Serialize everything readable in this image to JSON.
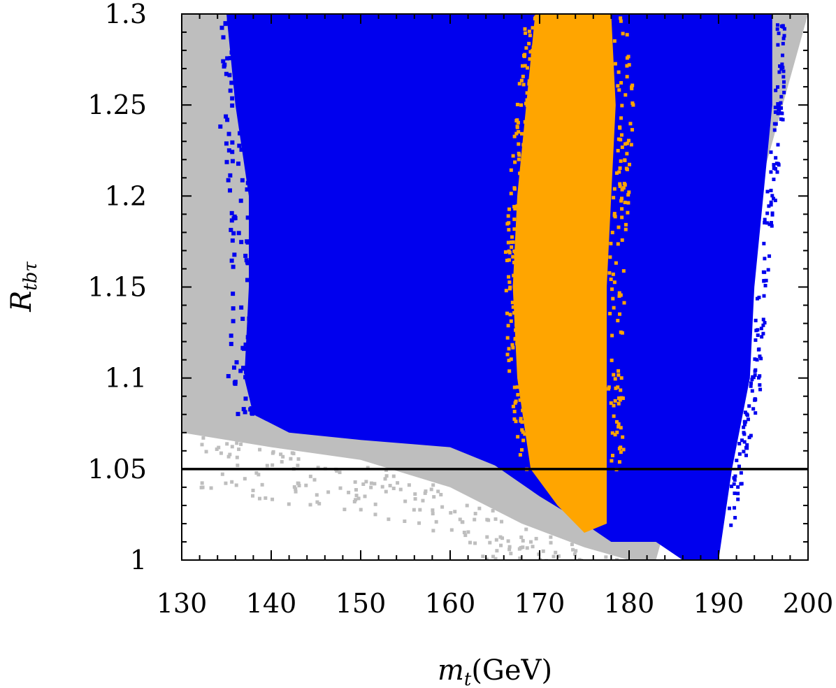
{
  "chart_data": {
    "type": "scatter",
    "title": "",
    "xlabel": {
      "symbol": "m",
      "sub": "t",
      "unit": "(GeV)"
    },
    "ylabel": {
      "symbol": "R",
      "sub": "tbτ"
    },
    "xlim": [
      130,
      200
    ],
    "ylim": [
      1.0,
      1.3
    ],
    "x_ticks": [
      130,
      140,
      150,
      160,
      170,
      180,
      190,
      200
    ],
    "x_tick_labels": [
      "130",
      "140",
      "150",
      "160",
      "170",
      "180",
      "190",
      "200"
    ],
    "y_ticks": [
      1.0,
      1.05,
      1.1,
      1.15,
      1.2,
      1.25,
      1.3
    ],
    "y_tick_labels": [
      "1",
      "1.05",
      "1.1",
      "1.15",
      "1.2",
      "1.25",
      "1.3"
    ],
    "reference_line": {
      "orientation": "horizontal",
      "y": 1.05,
      "color": "#000000"
    },
    "grid": false,
    "legend": "none",
    "series": [
      {
        "color": "#bebebe",
        "region": {
          "upper": [
            [
              130,
              1.3
            ],
            [
              200,
              1.3
            ]
          ],
          "lower": [
            [
              130,
              1.07
            ],
            [
              140,
              1.062
            ],
            [
              150,
              1.055
            ],
            [
              160,
              1.04
            ],
            [
              168,
              1.02
            ],
            [
              175,
              1.007
            ],
            [
              180,
              1.0
            ],
            [
              183,
              1.0
            ]
          ],
          "scatter_fringe_x": [
            130,
            185
          ],
          "scatter_fringe_y": [
            1.0,
            1.07
          ]
        }
      },
      {
        "color": "#0000ee",
        "region": {
          "left_edge": [
            [
              1.3,
              135
            ],
            [
              1.25,
              136
            ],
            [
              1.2,
              137.5
            ],
            [
              1.15,
              137.5
            ],
            [
              1.1,
              137
            ],
            [
              1.08,
              138
            ],
            [
              1.07,
              142
            ]
          ],
          "right_edge": [
            [
              1.3,
              196
            ],
            [
              1.25,
              196
            ],
            [
              1.2,
              195
            ],
            [
              1.15,
              194
            ],
            [
              1.1,
              193.5
            ],
            [
              1.05,
              191.5
            ],
            [
              1.0,
              190
            ]
          ],
          "bottom_edge": [
            [
              142,
              1.07
            ],
            [
              150,
              1.066
            ],
            [
              160,
              1.062
            ],
            [
              165,
              1.052
            ],
            [
              170,
              1.035
            ],
            [
              175,
              1.02
            ],
            [
              178,
              1.01
            ],
            [
              183,
              1.01
            ],
            [
              186,
              1.0
            ],
            [
              190,
              1.0
            ]
          ]
        }
      },
      {
        "color": "#ffa500",
        "region": {
          "left_edge": [
            [
              1.3,
              169.5
            ],
            [
              1.25,
              168.5
            ],
            [
              1.2,
              167.5
            ],
            [
              1.15,
              167
            ],
            [
              1.1,
              167.5
            ],
            [
              1.05,
              169
            ],
            [
              1.03,
              172
            ]
          ],
          "right_edge": [
            [
              1.3,
              178
            ],
            [
              1.25,
              178.5
            ],
            [
              1.2,
              178
            ],
            [
              1.15,
              177.5
            ],
            [
              1.1,
              177.5
            ],
            [
              1.05,
              177.5
            ],
            [
              1.02,
              177.5
            ]
          ],
          "bottom": 1.015
        }
      }
    ]
  }
}
